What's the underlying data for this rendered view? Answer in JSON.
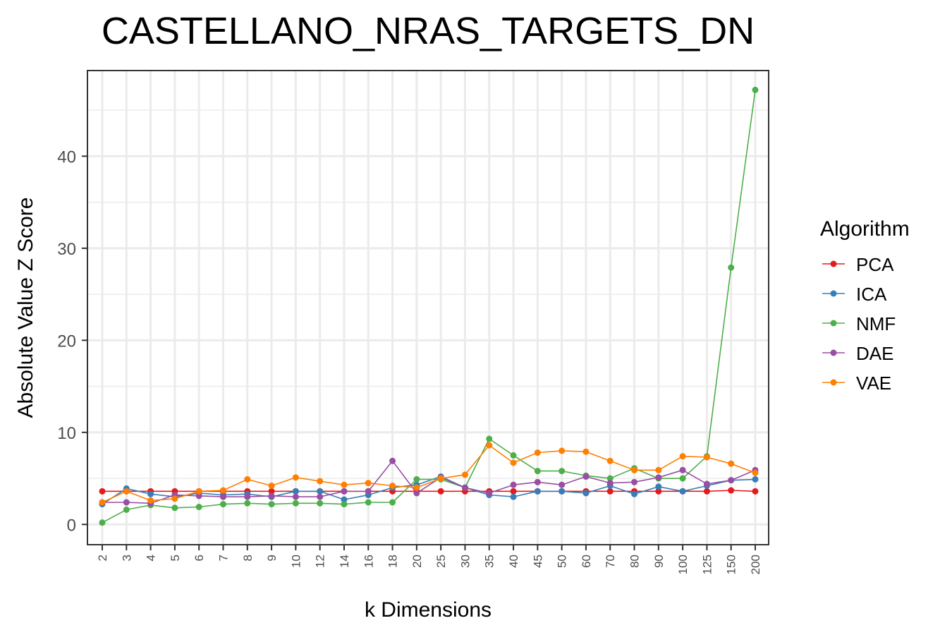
{
  "chart_data": {
    "type": "line",
    "title": "CASTELLANO_NRAS_TARGETS_DN",
    "xlabel": "k Dimensions",
    "ylabel": "Absolute Value Z Score",
    "categories": [
      "2",
      "3",
      "4",
      "5",
      "6",
      "7",
      "8",
      "9",
      "10",
      "12",
      "14",
      "16",
      "18",
      "20",
      "25",
      "30",
      "35",
      "40",
      "45",
      "50",
      "60",
      "70",
      "80",
      "90",
      "100",
      "125",
      "150",
      "200"
    ],
    "yticks": [
      0,
      10,
      20,
      30,
      40
    ],
    "ylim": [
      -2.2,
      49.3
    ],
    "grid": true,
    "legend": {
      "title": "Algorithm",
      "position": "right"
    },
    "series": [
      {
        "name": "PCA",
        "color": "#e41a1c",
        "values": [
          3.6,
          3.6,
          3.6,
          3.6,
          3.6,
          3.6,
          3.6,
          3.6,
          3.6,
          3.6,
          3.6,
          3.6,
          3.6,
          3.6,
          3.6,
          3.6,
          3.6,
          3.6,
          3.6,
          3.6,
          3.6,
          3.6,
          3.6,
          3.6,
          3.6,
          3.6,
          3.7,
          3.6
        ]
      },
      {
        "name": "ICA",
        "color": "#377eb8",
        "values": [
          2.2,
          3.9,
          3.3,
          3.0,
          3.4,
          3.2,
          3.3,
          3.0,
          3.6,
          3.6,
          2.7,
          3.2,
          4.0,
          4.3,
          5.2,
          4.0,
          3.2,
          3.0,
          3.6,
          3.6,
          3.4,
          4.2,
          3.3,
          4.1,
          3.6,
          4.2,
          4.8,
          4.9
        ]
      },
      {
        "name": "NMF",
        "color": "#4daf4a",
        "values": [
          0.2,
          1.6,
          2.1,
          1.8,
          1.9,
          2.2,
          2.3,
          2.2,
          2.3,
          2.3,
          2.2,
          2.4,
          2.4,
          4.9,
          4.9,
          4.0,
          9.3,
          7.5,
          5.8,
          5.8,
          5.3,
          5.0,
          6.1,
          5.0,
          5.0,
          7.4,
          27.9,
          47.2
        ]
      },
      {
        "name": "DAE",
        "color": "#984ea3",
        "values": [
          2.4,
          2.4,
          2.3,
          3.2,
          3.1,
          3.0,
          3.0,
          3.1,
          3.0,
          3.0,
          3.6,
          3.6,
          6.9,
          3.4,
          5.1,
          4.0,
          3.4,
          4.3,
          4.6,
          4.3,
          5.2,
          4.5,
          4.6,
          5.1,
          5.9,
          4.4,
          4.8,
          5.9
        ]
      },
      {
        "name": "VAE",
        "color": "#ff7f00",
        "values": [
          2.4,
          3.6,
          2.6,
          2.8,
          3.6,
          3.7,
          4.9,
          4.2,
          5.1,
          4.7,
          4.3,
          4.5,
          4.2,
          4.0,
          5.0,
          5.4,
          8.6,
          6.7,
          7.8,
          8.0,
          7.9,
          6.9,
          5.9,
          5.9,
          7.4,
          7.3,
          6.6,
          5.6
        ]
      }
    ]
  }
}
